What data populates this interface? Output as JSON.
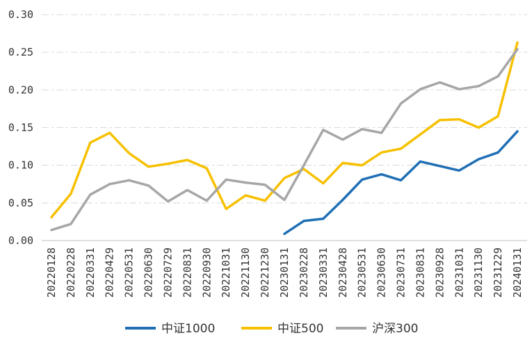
{
  "chart_data": {
    "type": "line",
    "title": "",
    "xlabel": "",
    "ylabel": "",
    "ylim": [
      0,
      0.3
    ],
    "yticks": [
      "0.00",
      "0.05",
      "0.10",
      "0.15",
      "0.20",
      "0.25",
      "0.30"
    ],
    "grid": true,
    "legend_position": "bottom",
    "categories": [
      "20220128",
      "20220228",
      "20220331",
      "20220429",
      "20220531",
      "20220630",
      "20220729",
      "20220831",
      "20220930",
      "20221031",
      "20221130",
      "20221230",
      "20230131",
      "20230228",
      "20230331",
      "20230428",
      "20230531",
      "20230630",
      "20230731",
      "20230831",
      "20230928",
      "20231031",
      "20231130",
      "20231229",
      "20240131"
    ],
    "series": [
      {
        "name": "中证1000",
        "color": "#1f6fb4",
        "values": [
          null,
          null,
          null,
          null,
          null,
          null,
          null,
          null,
          null,
          null,
          null,
          null,
          0.009,
          0.026,
          0.029,
          0.054,
          0.081,
          0.088,
          0.08,
          0.105,
          0.099,
          0.093,
          0.108,
          0.117,
          0.145
        ]
      },
      {
        "name": "中证500",
        "color": "#f7c000",
        "values": [
          0.031,
          0.062,
          0.13,
          0.143,
          0.116,
          0.098,
          0.102,
          0.107,
          0.096,
          0.042,
          0.06,
          0.053,
          0.083,
          0.095,
          0.076,
          0.103,
          0.1,
          0.117,
          0.122,
          0.141,
          0.16,
          0.161,
          0.15,
          0.165,
          0.263
        ]
      },
      {
        "name": "沪深300",
        "color": "#a6a6a6",
        "values": [
          0.014,
          0.022,
          0.061,
          0.075,
          0.08,
          0.073,
          0.052,
          0.067,
          0.053,
          0.081,
          0.077,
          0.074,
          0.054,
          0.1,
          0.147,
          0.134,
          0.148,
          0.143,
          0.182,
          0.201,
          0.21,
          0.201,
          0.205,
          0.218,
          0.254
        ]
      }
    ]
  }
}
